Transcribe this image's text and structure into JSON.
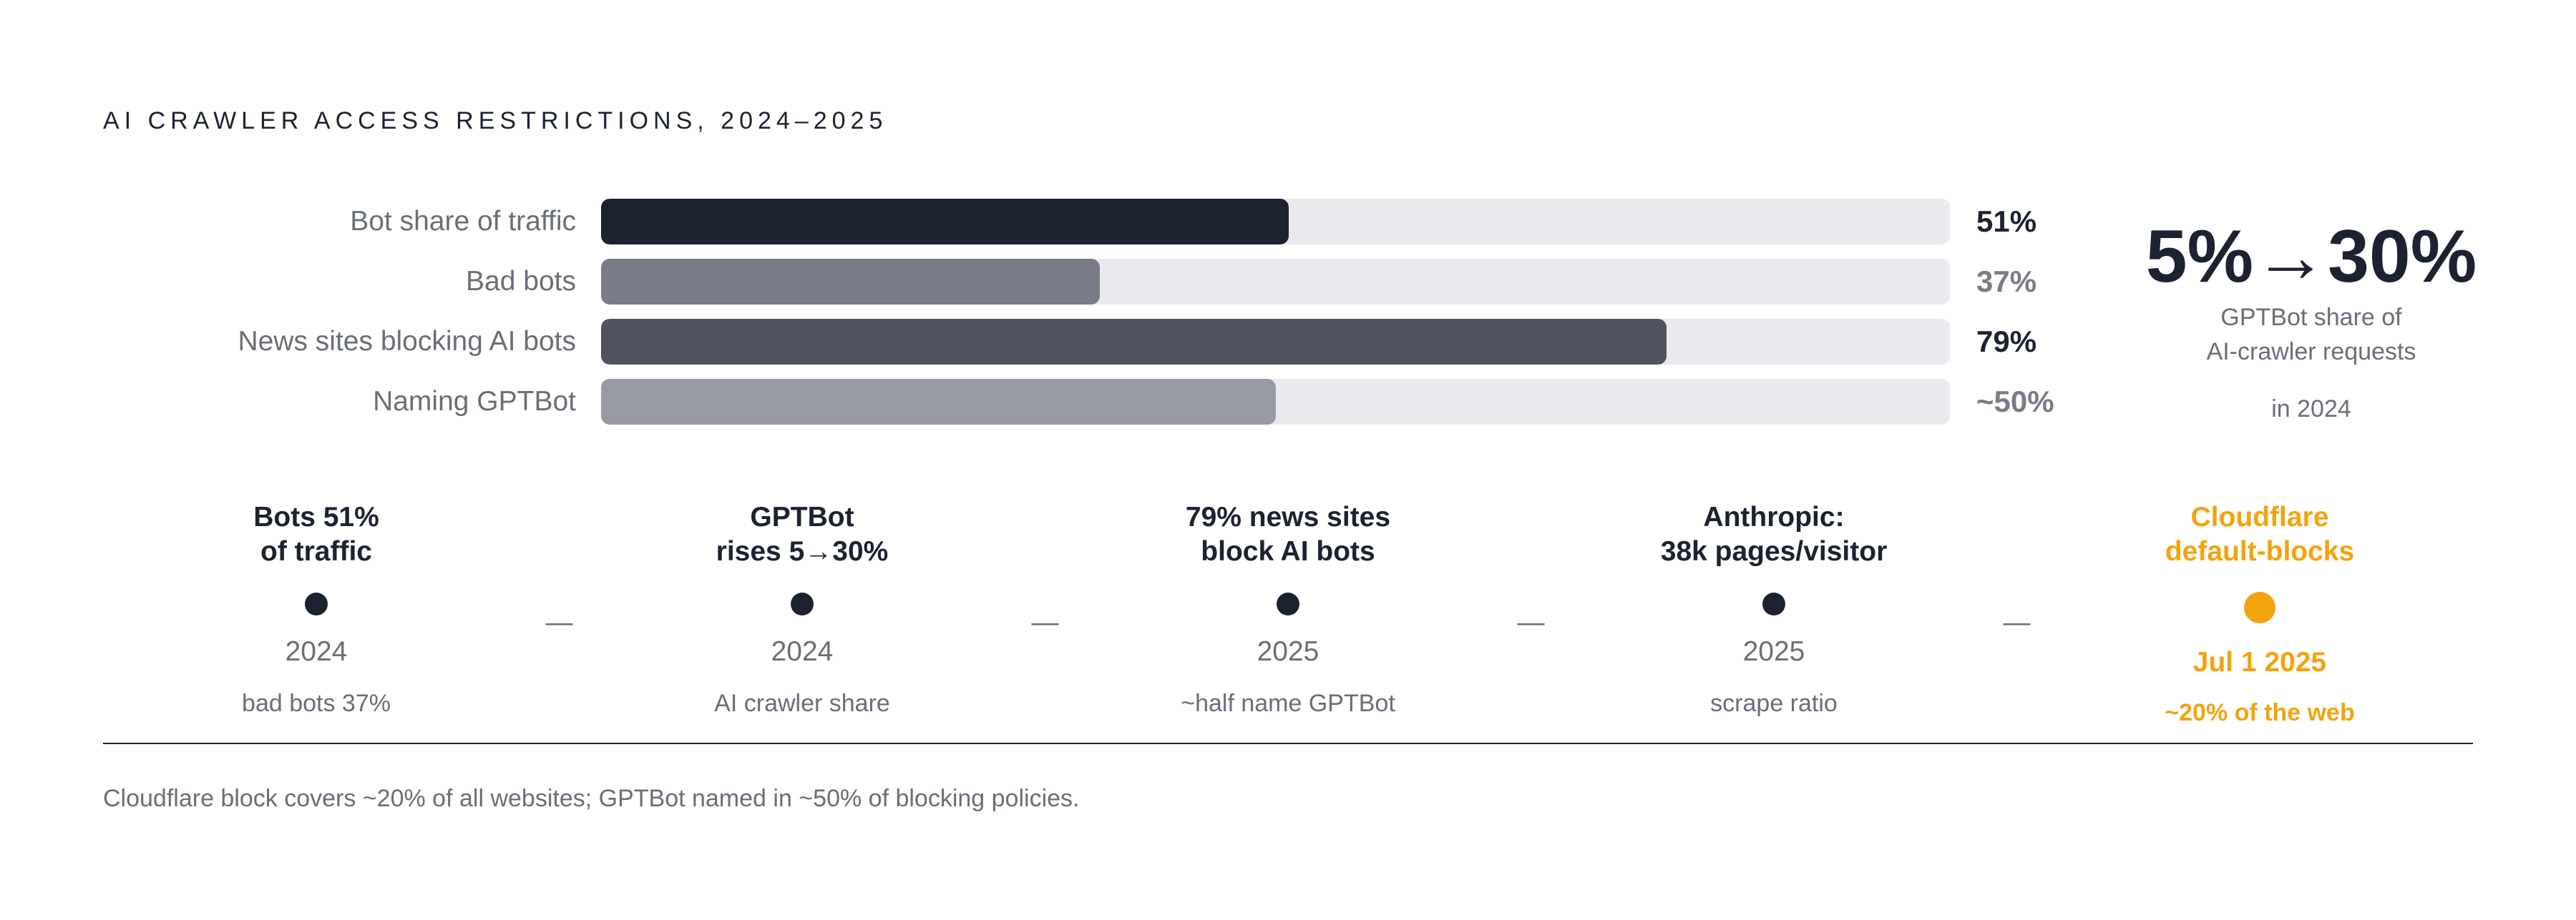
{
  "title": "AI CRAWLER ACCESS RESTRICTIONS, 2024–2025",
  "chart_data": {
    "type": "bar",
    "orientation": "horizontal",
    "categories": [
      "Bot share of traffic",
      "Bad bots",
      "News sites blocking AI bots",
      "Naming GPTBot"
    ],
    "values": [
      51,
      37,
      79,
      50
    ],
    "value_labels": [
      "51%",
      "37%",
      "79%",
      "~50%"
    ],
    "xlim": [
      0,
      100
    ],
    "grid": false,
    "colors": [
      "#1d2230",
      "#797c87",
      "#50525f",
      "#9799a3"
    ],
    "value_colors": [
      "#1d2230",
      "#797c87",
      "#1d2230",
      "#797c87"
    ]
  },
  "kpi": {
    "headline": "5%→30%",
    "caption_line1": "GPTBot share of",
    "caption_line2": "AI-crawler requests",
    "caption_line3": "in 2024"
  },
  "timeline": {
    "separator": "—",
    "events": [
      {
        "head_line1": "Bots 51%",
        "head_line2": "of traffic",
        "date": "2024",
        "note": "bad bots 37%",
        "highlight": false
      },
      {
        "head_line1": "GPTBot",
        "head_line2": "rises 5→30%",
        "date": "2024",
        "note": "AI crawler share",
        "highlight": false
      },
      {
        "head_line1": "79% news sites",
        "head_line2": "block AI bots",
        "date": "2025",
        "note": "~half name GPTBot",
        "highlight": false
      },
      {
        "head_line1": "Anthropic:",
        "head_line2": "38k pages/visitor",
        "date": "2025",
        "note": "scrape ratio",
        "highlight": false
      },
      {
        "head_line1": "Cloudflare",
        "head_line2": "default-blocks",
        "date": "Jul 1 2025",
        "note": "~20% of the web",
        "highlight": true
      }
    ],
    "colors": {
      "normal_head": "#1d2230",
      "normal_meta": "#6a6e79",
      "highlight": "#f2a40f",
      "dot": "#1d2230"
    }
  },
  "footnote": "Cloudflare block covers ~20% of all websites; GPTBot named in ~50% of blocking policies."
}
